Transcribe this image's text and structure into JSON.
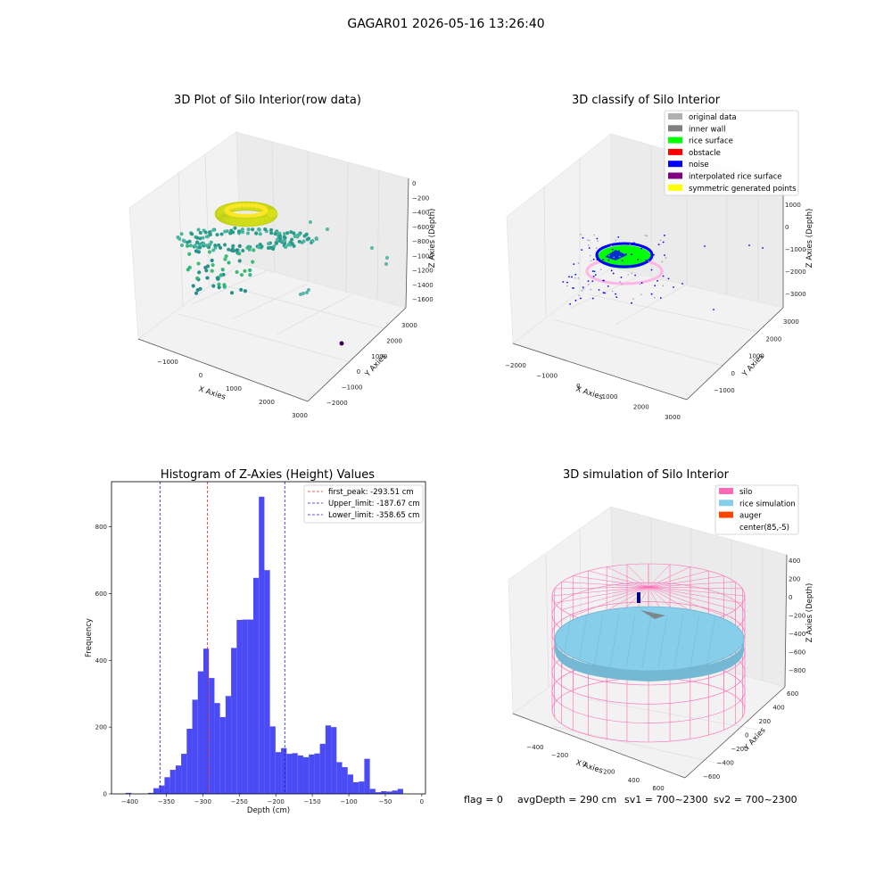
{
  "figure": {
    "title": "GAGAR01 2026-05-16 13:26:40",
    "footer": {
      "flag": "flag = 0",
      "avgDepth": "avgDepth = 290 cm",
      "sv1": "sv1 = 700~2300",
      "sv2": "sv2 = 700~2300"
    }
  },
  "colors": {
    "hist_bar": "#4b4bf5",
    "first_peak": "#d62728",
    "limits": "#1f1fd6",
    "silo": "#ff69b4",
    "rice": "#87ceeb",
    "auger": "#ff4500",
    "rice_surface": "#00ff00",
    "noise": "#0000ff",
    "original": "#b0b0b0",
    "inner_wall": "#808080",
    "obstacle": "#ff0000",
    "interpolated": "#800080",
    "symmetric": "#ffff00"
  },
  "chart_data": [
    {
      "type": "scatter",
      "projection": "3d",
      "title": "3D Plot of Silo Interior(row data)",
      "xlabel": "X Axies",
      "ylabel": "Y Axies",
      "zlabel": "Z Axies (Depth)",
      "x_ticks": [
        "−1000",
        "0",
        "1000",
        "2000",
        "3000"
      ],
      "y_ticks": [
        "−2000",
        "−1000",
        "0",
        "1000",
        "2000",
        "3000"
      ],
      "z_ticks": [
        "0",
        "−200",
        "−400",
        "−600",
        "−800",
        "−1000",
        "−1200",
        "−1400",
        "−1600"
      ],
      "colormap": "viridis",
      "clusters": [
        {
          "name": "ring",
          "x": 200,
          "y": 400,
          "z": -250,
          "color": "#d7e219"
        },
        {
          "name": "floor",
          "x": 0,
          "y": 300,
          "z": -700,
          "color": "#3fbc73"
        },
        {
          "name": "outlier",
          "x": 2600,
          "y": -1400,
          "z": -1600,
          "color": "#440154"
        }
      ]
    },
    {
      "type": "scatter",
      "projection": "3d",
      "title": "3D classify of Silo Interior",
      "xlabel": "X Axies",
      "ylabel": "Y Axies",
      "zlabel": "Z Axies (Depth)",
      "x_ticks": [
        "−2000",
        "−1000",
        "0",
        "1000",
        "2000",
        "3000"
      ],
      "y_ticks": [
        "−1000",
        "0",
        "1000",
        "2000",
        "3000"
      ],
      "z_ticks": [
        "1000",
        "0",
        "−1000",
        "−2000",
        "−3000"
      ],
      "legend": [
        "original data",
        "inner wall",
        "rice surface",
        "obstacle",
        "noise",
        "interpolated rice surface",
        "symmetric generated points"
      ],
      "legend_colors": [
        "#b0b0b0",
        "#808080",
        "#00ff00",
        "#ff0000",
        "#0000ff",
        "#800080",
        "#ffff00"
      ],
      "legend_position": "top-right"
    },
    {
      "type": "bar",
      "title": "Histogram of Z-Axies (Height) Values",
      "xlabel": "Depth (cm)",
      "ylabel": "Frequency",
      "xlim": [
        -425,
        5
      ],
      "ylim": [
        0,
        935
      ],
      "x_ticks": [
        -400,
        -350,
        -300,
        -250,
        -200,
        -150,
        -100,
        -50,
        0
      ],
      "x_tick_labels": [
        "−400",
        "−350",
        "−300",
        "−250",
        "−200",
        "−150",
        "−100",
        "−50",
        "0"
      ],
      "y_ticks": [
        0,
        200,
        400,
        600,
        800
      ],
      "bin_start": -405.6,
      "bin_width": 7.6,
      "values": [
        3,
        0,
        0,
        0,
        3,
        17,
        25,
        50,
        72,
        85,
        120,
        195,
        282,
        367,
        435,
        347,
        272,
        230,
        293,
        437,
        521,
        522,
        522,
        647,
        890,
        670,
        202,
        125,
        137,
        120,
        122,
        115,
        110,
        118,
        121,
        150,
        205,
        200,
        95,
        80,
        58,
        35,
        37,
        105,
        15,
        5,
        8,
        7,
        10,
        15
      ],
      "lines": [
        {
          "label": "first_peak: -293.51 cm",
          "x": -293.51,
          "color": "#d62728"
        },
        {
          "label": "Upper_limit: -187.67 cm",
          "x": -187.67,
          "color": "#1f1fd6"
        },
        {
          "label": "Lower_limit: -358.65 cm",
          "x": -358.65,
          "color": "#1f1fd6"
        }
      ],
      "legend_position": "top-right",
      "grid": false
    },
    {
      "type": "surface",
      "projection": "3d",
      "title": "3D simulation of Silo Interior",
      "xlabel": "X Axies",
      "ylabel": "Y Axies",
      "zlabel": "Z Axies (Depth)",
      "x_ticks": [
        "−400",
        "−200",
        "0",
        "200",
        "400",
        "600"
      ],
      "y_ticks": [
        "−600",
        "−400",
        "−200",
        "0",
        "200",
        "400",
        "600"
      ],
      "z_ticks": [
        "400",
        "200",
        "0",
        "−200",
        "−400",
        "−600",
        "−800"
      ],
      "legend": [
        "silo",
        "rice simulation",
        "auger",
        "center(85,-5)"
      ],
      "legend_colors": [
        "#ff69b4",
        "#87ceeb",
        "#ff4500",
        ""
      ],
      "legend_position": "top-right",
      "center": [
        85,
        -5
      ]
    }
  ]
}
